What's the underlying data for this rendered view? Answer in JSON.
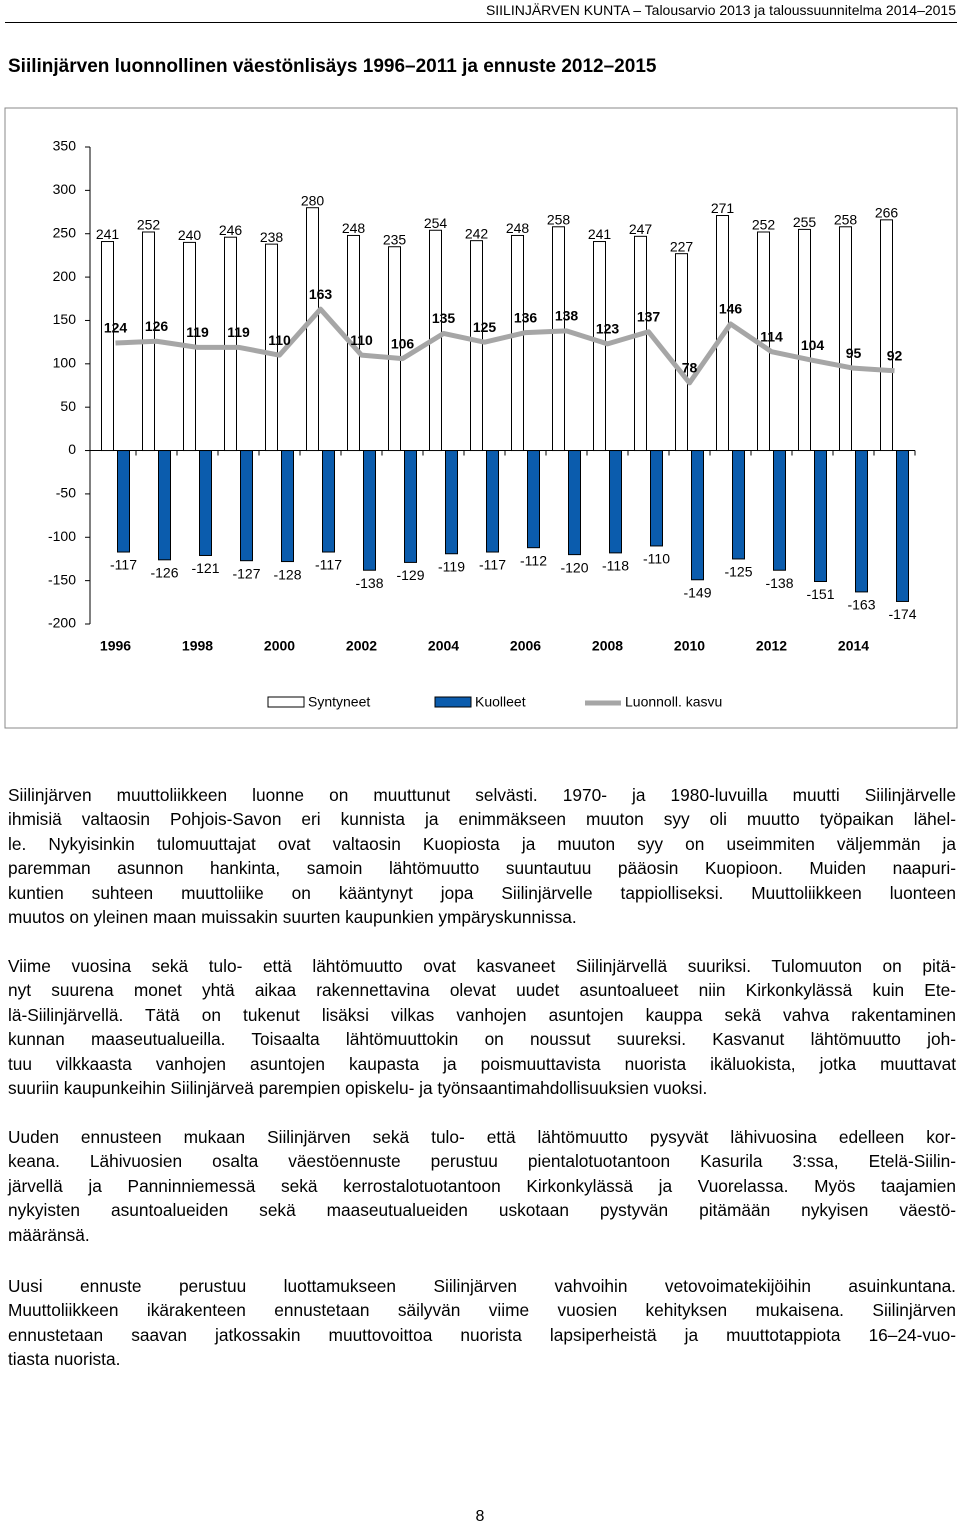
{
  "header": {
    "text": "SIILINJÄRVEN KUNTA – Talousarvio 2013 ja taloussuunnitelma 2014–2015"
  },
  "chart_data": {
    "type": "bar",
    "title": "Siilinjärven luonnollinen väestönlisäys 1996–2011 ja ennuste 2012–2015",
    "categories": [
      "1996",
      null,
      "1998",
      null,
      "2000",
      null,
      "2002",
      null,
      "2004",
      null,
      "2006",
      null,
      "2008",
      null,
      "2010",
      null,
      "2012",
      null,
      "2014",
      null
    ],
    "series": [
      {
        "name": "Syntyneet",
        "type": "bar",
        "color": "#ffffff",
        "values": [
          241,
          252,
          240,
          246,
          238,
          280,
          248,
          235,
          254,
          242,
          248,
          258,
          241,
          247,
          227,
          271,
          252,
          255,
          258,
          266
        ]
      },
      {
        "name": "Kuolleet",
        "type": "bar",
        "color": "#0b5cad",
        "values": [
          -117,
          -126,
          -121,
          -127,
          -128,
          -117,
          -138,
          -129,
          -119,
          -117,
          -112,
          -120,
          -118,
          -110,
          -149,
          -125,
          -138,
          -151,
          -163,
          -174
        ]
      },
      {
        "name": "Luonnoll. kasvu",
        "type": "line",
        "color": "#a6a6a6",
        "values": [
          124,
          126,
          119,
          119,
          110,
          163,
          110,
          106,
          135,
          125,
          136,
          138,
          123,
          137,
          78,
          146,
          114,
          104,
          95,
          92
        ]
      }
    ],
    "ylim": [
      -200,
      350
    ],
    "yticks": [
      -200,
      -150,
      -100,
      -50,
      0,
      50,
      100,
      150,
      200,
      250,
      300,
      350
    ],
    "grid": false,
    "legend": "bottom"
  },
  "paragraphs": [
    [
      "Siilinjärven muuttoliikkeen luonne on muuttunut selvästi. 1970- ja 1980-luvuilla muutti Siilinjärvelle",
      "ihmisiä valtaosin Pohjois-Savon eri kunnista ja enimmäkseen muuton syy oli muutto työpaikan lähel-",
      "le. Nykyisinkin tulomuuttajat ovat valtaosin Kuopiosta ja muuton syy on useimmiten väljemmän ja",
      "paremman asunnon hankinta, samoin lähtömuutto suuntautuu pääosin Kuopioon. Muiden naapuri-",
      "kuntien suhteen muuttoliike on kääntynyt jopa Siilinjärvelle tappiolliseksi. Muuttoliikkeen luonteen",
      "muutos on yleinen maan muissakin suurten kaupunkien ympäryskunnissa."
    ],
    [
      "Viime vuosina sekä tulo- että lähtömuutto ovat kasvaneet Siilinjärvellä suuriksi. Tulomuuton on pitä-",
      "nyt suurena monet yhtä aikaa rakennettavina olevat uudet asuntoalueet niin Kirkonkylässä kuin Ete-",
      "lä-Siilinjärvellä. Tätä on tukenut lisäksi vilkas vanhojen asuntojen kauppa sekä vahva rakentaminen",
      "kunnan maaseutualueilla. Toisaalta lähtömuuttokin on noussut suureksi. Kasvanut lähtömuutto joh-",
      "tuu vilkkaasta vanhojen asuntojen kaupasta ja poismuuttavista nuorista ikäluokista, jotka muuttavat",
      "suuriin kaupunkeihin Siilinjärveä parempien opiskelu- ja työnsaantimahdollisuuksien vuoksi."
    ],
    [
      "Uuden ennusteen mukaan Siilinjärven sekä tulo- että lähtömuutto pysyvät lähivuosina edelleen kor-",
      "keana. Lähivuosien osalta väestöennuste perustuu pientalotuotantoon Kasurila 3:ssa, Etelä-Siilin-",
      "järvellä ja Panninniemessä sekä kerrostalotuotantoon Kirkonkylässä ja Vuorelassa. Myös taajamien",
      "nykyisten asuntoalueiden sekä maaseutualueiden uskotaan pystyvän pitämään nykyisen väestö-",
      "määränsä."
    ],
    [
      "Uusi ennuste perustuu luottamukseen Siilinjärven vahvoihin vetovoimatekijöihin asuinkuntana.",
      "Muuttoliikkeen ikärakenteen ennustetaan säilyvän viime vuosien kehityksen mukaisena. Siilinjärven",
      "ennustetaan saavan jatkossakin muuttovoittoa nuorista lapsiperheistä ja muuttotappiota 16–24-vuo-",
      "tiasta nuorista."
    ]
  ],
  "page_number": "8"
}
